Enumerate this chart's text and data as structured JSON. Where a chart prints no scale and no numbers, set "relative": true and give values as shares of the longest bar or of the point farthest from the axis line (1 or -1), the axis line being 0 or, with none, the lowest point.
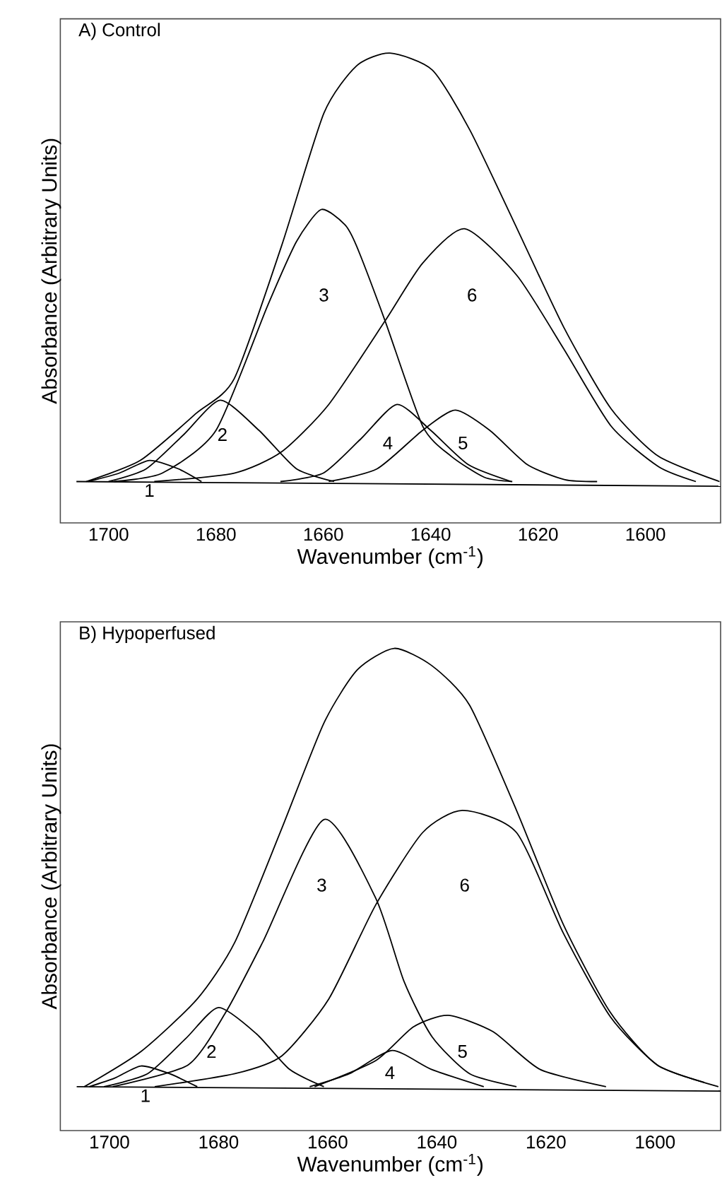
{
  "chart_data": [
    {
      "type": "line",
      "title": "A) Control",
      "xlabel": "Wavenumber (cm$^{-1}$)",
      "ylabel": "Absorbance (Arbitrary Units)",
      "relative": true,
      "xlim": [
        1709,
        1586
      ],
      "xticks": [
        1700,
        1680,
        1660,
        1640,
        1620,
        1600
      ],
      "series": [
        {
          "color": "#000000",
          "x": [
            1704.2,
            1694.1,
            1683.6,
            1676.6,
            1667.8,
            1659.9,
            1653.8,
            1647.6,
            1639.7,
            1632.7,
            1623.9,
            1615.2,
            1606.4,
            1597.6,
            1586.2
          ],
          "values": [
            0.088,
            0.133,
            0.234,
            0.307,
            0.589,
            0.872,
            0.973,
            1.0,
            0.964,
            0.836,
            0.626,
            0.416,
            0.243,
            0.142,
            0.088
          ]
        },
        {
          "color": "#000000",
          "x": [
            1703.8,
            1698,
            1692.4,
            1687,
            1682.7
          ],
          "values": [
            0.088,
            0.106,
            0.133,
            0.115,
            0.088
          ]
        },
        {
          "color": "#000000",
          "x": [
            1700,
            1693,
            1686,
            1679.2,
            1672,
            1665,
            1658
          ],
          "values": [
            0.088,
            0.115,
            0.188,
            0.261,
            0.197,
            0.115,
            0.088
          ]
        },
        {
          "color": "#000000",
          "x": [
            1699,
            1690,
            1680,
            1670.4,
            1665,
            1660.4,
            1656,
            1653.8,
            1648.5,
            1641.5,
            1636.2,
            1630,
            1624.8
          ],
          "values": [
            0.088,
            0.106,
            0.197,
            0.462,
            0.599,
            0.667,
            0.635,
            0.589,
            0.43,
            0.206,
            0.142,
            0.097,
            0.088
          ]
        },
        {
          "color": "#000000",
          "x": [
            1668,
            1660,
            1653,
            1646.3,
            1640,
            1633,
            1625
          ],
          "values": [
            0.088,
            0.106,
            0.179,
            0.252,
            0.197,
            0.124,
            0.088
          ]
        },
        {
          "color": "#000000",
          "x": [
            1659,
            1650,
            1641.5,
            1635.4,
            1629,
            1622,
            1615,
            1609
          ],
          "values": [
            0.088,
            0.115,
            0.197,
            0.24,
            0.197,
            0.124,
            0.092,
            0.088
          ]
        },
        {
          "color": "#000000",
          "x": [
            1691.5,
            1676.6,
            1667.8,
            1659,
            1648.5,
            1641.5,
            1633.6,
            1623.9,
            1615.2,
            1606.4,
            1597.6,
            1590.6
          ],
          "values": [
            0.088,
            0.106,
            0.151,
            0.252,
            0.43,
            0.553,
            0.626,
            0.526,
            0.37,
            0.206,
            0.12,
            0.088
          ]
        },
        {
          "color": "#000000",
          "x": [
            1706,
            1586
          ],
          "values": [
            0.088,
            0.078
          ]
        }
      ],
      "annotations": [
        "1",
        "2",
        "3",
        "4",
        "5",
        "6"
      ]
    },
    {
      "type": "line",
      "title": "B) Hypoperfused",
      "xlabel": "Wavenumber (cm$^{-1}$)",
      "ylabel": "Absorbance (Arbitrary Units)",
      "relative": true,
      "xlim": [
        1709,
        1588
      ],
      "xticks": [
        1700,
        1680,
        1660,
        1640,
        1620,
        1600
      ],
      "series": [
        {
          "color": "#000000",
          "x": [
            1704.6,
            1694.2,
            1683.9,
            1677,
            1668.4,
            1660.7,
            1654.6,
            1647.8,
            1640.9,
            1634,
            1625.4,
            1616.8,
            1608.2,
            1599.6,
            1588.4
          ],
          "values": [
            0.091,
            0.164,
            0.273,
            0.391,
            0.627,
            0.845,
            0.955,
            1.0,
            0.964,
            0.882,
            0.664,
            0.427,
            0.245,
            0.136,
            0.091
          ]
        },
        {
          "color": "#000000",
          "x": [
            1703.7,
            1699,
            1694.2,
            1689,
            1683.9
          ],
          "values": [
            0.091,
            0.109,
            0.134,
            0.118,
            0.091
          ]
        },
        {
          "color": "#000000",
          "x": [
            1701,
            1693,
            1686,
            1680,
            1673,
            1667,
            1660.7
          ],
          "values": [
            0.091,
            0.118,
            0.191,
            0.255,
            0.2,
            0.127,
            0.091
          ]
        },
        {
          "color": "#000000",
          "x": [
            1699.4,
            1685.6,
            1678.7,
            1671.9,
            1660.7,
            1651.2,
            1646,
            1640.9,
            1634,
            1625.4
          ],
          "values": [
            0.091,
            0.136,
            0.245,
            0.391,
            0.645,
            0.482,
            0.309,
            0.195,
            0.118,
            0.091
          ]
        },
        {
          "color": "#000000",
          "x": [
            1663.3,
            1656,
            1648.2,
            1641,
            1631.4
          ],
          "values": [
            0.091,
            0.118,
            0.166,
            0.127,
            0.091
          ]
        },
        {
          "color": "#000000",
          "x": [
            1662.4,
            1651.2,
            1644.3,
            1637.9,
            1629.7,
            1621.1,
            1609
          ],
          "values": [
            0.091,
            0.145,
            0.215,
            0.239,
            0.205,
            0.127,
            0.091
          ]
        },
        {
          "color": "#000000",
          "x": [
            1691.7,
            1677,
            1668.4,
            1659.8,
            1651.2,
            1642.6,
            1635.3,
            1625.4,
            1616.8,
            1608.2,
            1599.6,
            1591
          ],
          "values": [
            0.091,
            0.118,
            0.155,
            0.273,
            0.468,
            0.618,
            0.664,
            0.618,
            0.409,
            0.236,
            0.136,
            0.1
          ]
        },
        {
          "color": "#000000",
          "x": [
            1706,
            1588
          ],
          "values": [
            0.091,
            0.082
          ]
        }
      ],
      "annotations": [
        "1",
        "2",
        "3",
        "4",
        "5",
        "6"
      ]
    }
  ]
}
